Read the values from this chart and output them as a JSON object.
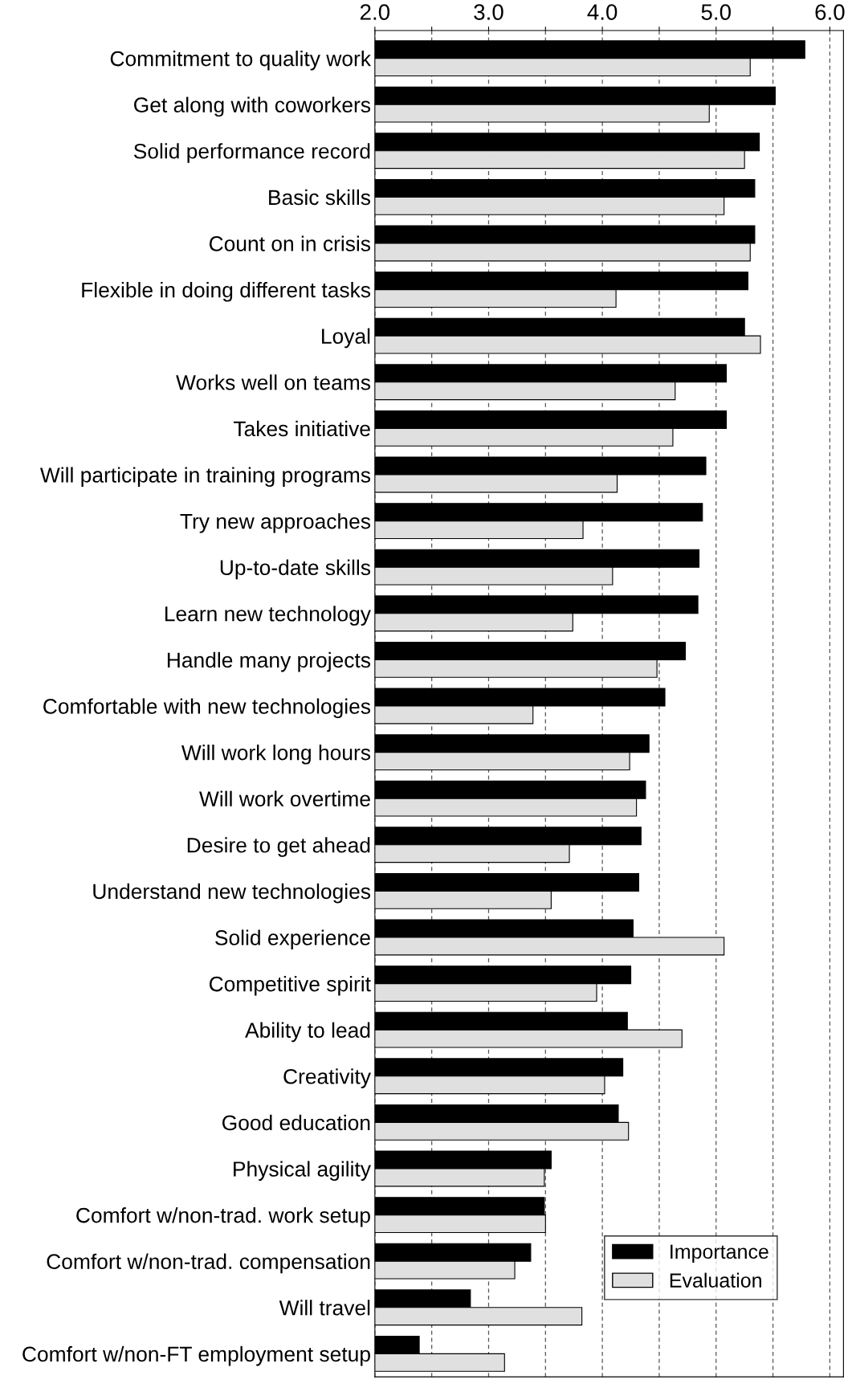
{
  "chart_data": {
    "type": "bar",
    "orientation": "horizontal",
    "categories": [
      "Commitment to quality work",
      "Get along with coworkers",
      "Solid performance record",
      "Basic skills",
      "Count on in crisis",
      "Flexible in doing different tasks",
      "Loyal",
      "Works well on teams",
      "Takes initiative",
      "Will participate in training programs",
      "Try new approaches",
      "Up-to-date skills",
      "Learn new technology",
      "Handle many projects",
      "Comfortable with new technologies",
      "Will work long hours",
      "Will work overtime",
      "Desire to get ahead",
      "Understand new technologies",
      "Solid experience",
      "Competitive spirit",
      "Ability to lead",
      "Creativity",
      "Good education",
      "Physical agility",
      "Comfort w/non-trad. work setup",
      "Comfort w/non-trad. compensation",
      "Will travel",
      "Comfort w/non-FT employment setup"
    ],
    "series": [
      {
        "name": "Importance",
        "color": "#000000",
        "values": [
          5.78,
          5.52,
          5.38,
          5.34,
          5.34,
          5.28,
          5.25,
          5.09,
          5.09,
          4.91,
          4.88,
          4.85,
          4.84,
          4.73,
          4.55,
          4.41,
          4.38,
          4.34,
          4.32,
          4.27,
          4.25,
          4.22,
          4.18,
          4.14,
          3.55,
          3.49,
          3.37,
          2.84,
          2.39
        ]
      },
      {
        "name": "Evaluation",
        "color": "#e0e0e0",
        "values": [
          5.3,
          4.94,
          5.25,
          5.07,
          5.3,
          4.12,
          5.39,
          4.64,
          4.62,
          4.13,
          3.83,
          4.09,
          3.74,
          4.48,
          3.39,
          4.24,
          4.3,
          3.71,
          3.55,
          5.07,
          3.95,
          4.7,
          4.02,
          4.23,
          3.49,
          3.5,
          3.23,
          3.82,
          3.14
        ]
      }
    ],
    "xlim": [
      2,
      6.12
    ],
    "xticks": [
      {
        "value": 2,
        "label": "2.0"
      },
      {
        "value": 2.5,
        "label": null
      },
      {
        "value": 3,
        "label": "3.0"
      },
      {
        "value": 3.5,
        "label": null
      },
      {
        "value": 4,
        "label": "4.0"
      },
      {
        "value": 4.5,
        "label": null
      },
      {
        "value": 5,
        "label": "5.0"
      },
      {
        "value": 5.5,
        "label": null
      },
      {
        "value": 6,
        "label": "6.0"
      }
    ],
    "grid": "x",
    "legend": "bottom right"
  }
}
